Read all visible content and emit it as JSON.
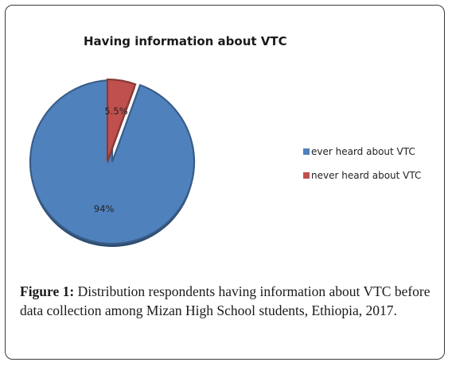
{
  "figure": {
    "caption_prefix": "Figure 1:",
    "caption_text": " Distribution respondents having information about VTC before data collection among Mizan High School students, Ethiopia, 2017."
  },
  "chart_data": {
    "type": "pie",
    "title": "Having information about VTC",
    "legend_position": "right",
    "slices": [
      {
        "name": "ever heard about VTC",
        "value": 94,
        "label": "94%",
        "color": "#4f81bd"
      },
      {
        "name": "never heard about VTC",
        "value": 5.5,
        "label": "5.5%",
        "color": "#c0504d"
      }
    ]
  }
}
